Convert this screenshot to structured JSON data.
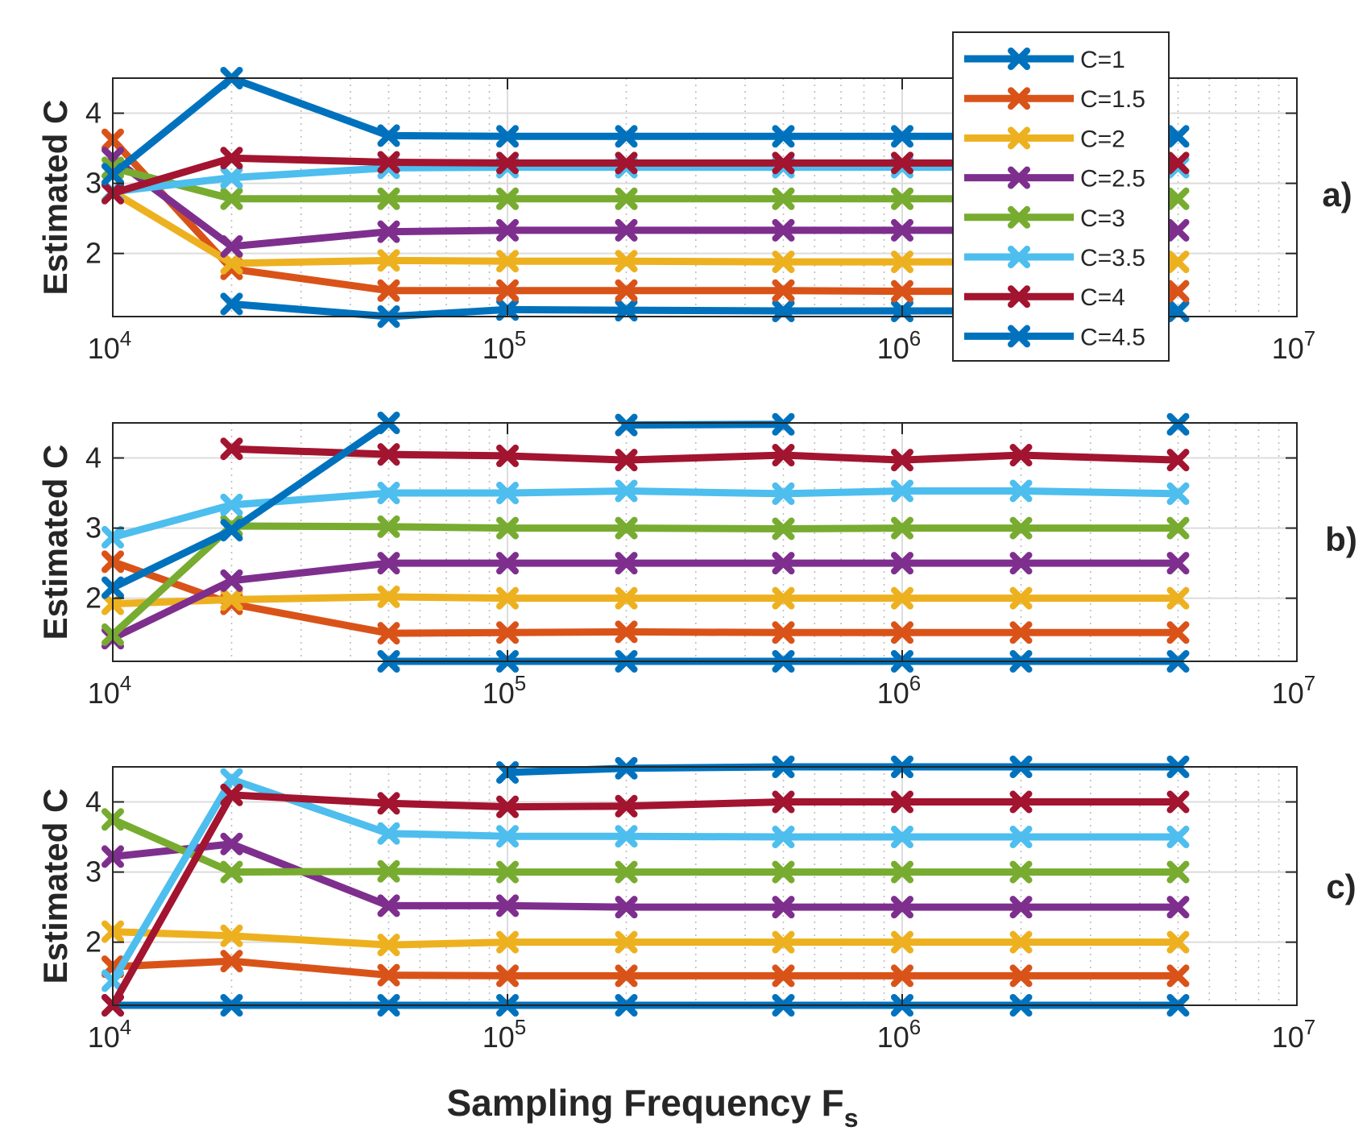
{
  "chart_data": {
    "type": "line",
    "xscale": "log",
    "xlabel": "Sampling Frequency F",
    "xlabel_subscript": "s",
    "ylabel": "Estimated C",
    "xlim": [
      10000,
      10000000
    ],
    "ylim": [
      1.1,
      4.5
    ],
    "x_tick_labels": [
      {
        "base": "10",
        "exp": "4",
        "value": 10000
      },
      {
        "base": "10",
        "exp": "5",
        "value": 100000
      },
      {
        "base": "10",
        "exp": "6",
        "value": 1000000
      },
      {
        "base": "10",
        "exp": "7",
        "value": 10000000
      }
    ],
    "y_ticks": [
      2,
      3,
      4
    ],
    "y_tick_labels": [
      "2",
      "3",
      "4"
    ],
    "grid": true,
    "legend_position": "top-right, overlapping panel a",
    "legend": [
      {
        "name": "C=1",
        "color": "#0072BD"
      },
      {
        "name": "C=1.5",
        "color": "#D95319"
      },
      {
        "name": "C=2",
        "color": "#EDB120"
      },
      {
        "name": "C=2.5",
        "color": "#7E2F8E"
      },
      {
        "name": "C=3",
        "color": "#77AC30"
      },
      {
        "name": "C=3.5",
        "color": "#4DBEEE"
      },
      {
        "name": "C=4",
        "color": "#A2142F"
      },
      {
        "name": "C=4.5",
        "color": "#0072BD"
      }
    ],
    "panels": [
      {
        "label": "a)",
        "series": [
          {
            "name": "C=1",
            "x": [
              20000,
              50000,
              100000,
              200000,
              500000,
              1000000,
              2000000,
              5000000
            ],
            "values": [
              1.28,
              1.1,
              1.2,
              1.19,
              1.18,
              1.18,
              1.18,
              1.18
            ]
          },
          {
            "name": "C=1.5",
            "x": [
              10000,
              20000,
              50000,
              100000,
              200000,
              500000,
              1000000,
              2000000,
              5000000
            ],
            "values": [
              3.62,
              1.78,
              1.47,
              1.47,
              1.47,
              1.47,
              1.46,
              1.46,
              1.46
            ]
          },
          {
            "name": "C=2",
            "x": [
              10000,
              20000,
              50000,
              100000,
              200000,
              500000,
              1000000,
              2000000,
              5000000
            ],
            "values": [
              2.88,
              1.86,
              1.9,
              1.89,
              1.89,
              1.88,
              1.88,
              1.88,
              1.88
            ]
          },
          {
            "name": "C=2.5",
            "x": [
              10000,
              20000,
              50000,
              100000,
              200000,
              500000,
              1000000,
              2000000,
              5000000
            ],
            "values": [
              3.36,
              2.1,
              2.31,
              2.33,
              2.33,
              2.33,
              2.33,
              2.33,
              2.33
            ]
          },
          {
            "name": "C=3",
            "x": [
              10000,
              20000,
              50000,
              100000,
              200000,
              500000,
              1000000,
              2000000,
              5000000
            ],
            "values": [
              3.22,
              2.78,
              2.78,
              2.78,
              2.78,
              2.78,
              2.78,
              2.78,
              2.78
            ]
          },
          {
            "name": "C=3.5",
            "x": [
              10000,
              20000,
              50000,
              100000,
              200000,
              500000,
              1000000,
              2000000,
              5000000
            ],
            "values": [
              2.88,
              3.08,
              3.22,
              3.23,
              3.23,
              3.23,
              3.23,
              3.23,
              3.23
            ]
          },
          {
            "name": "C=4",
            "x": [
              10000,
              20000,
              50000,
              100000,
              200000,
              500000,
              1000000,
              2000000,
              5000000
            ],
            "values": [
              2.86,
              3.36,
              3.3,
              3.29,
              3.29,
              3.29,
              3.29,
              3.29,
              3.29
            ]
          },
          {
            "name": "C=4.5",
            "x": [
              10000,
              20000,
              50000,
              100000,
              200000,
              500000,
              1000000,
              2000000,
              5000000
            ],
            "values": [
              3.13,
              4.5,
              3.68,
              3.67,
              3.67,
              3.67,
              3.67,
              3.67,
              3.67
            ]
          }
        ]
      },
      {
        "label": "b)",
        "series": [
          {
            "name": "C=1",
            "x": [
              50000,
              100000,
              200000,
              500000,
              1000000,
              2000000,
              5000000
            ],
            "values": [
              1.1,
              1.1,
              1.1,
              1.1,
              1.1,
              1.1,
              1.1
            ]
          },
          {
            "name": "C=1.5",
            "x": [
              10000,
              20000,
              50000,
              100000,
              200000,
              500000,
              1000000,
              2000000,
              5000000
            ],
            "values": [
              2.52,
              1.92,
              1.5,
              1.51,
              1.52,
              1.51,
              1.51,
              1.51,
              1.51
            ]
          },
          {
            "name": "C=2",
            "x": [
              10000,
              20000,
              50000,
              100000,
              200000,
              500000,
              1000000,
              2000000,
              5000000
            ],
            "values": [
              1.92,
              1.98,
              2.02,
              2.0,
              2.0,
              2.0,
              2.0,
              2.0,
              2.0
            ]
          },
          {
            "name": "C=2.5",
            "x": [
              10000,
              20000,
              50000,
              100000,
              200000,
              500000,
              1000000,
              2000000,
              5000000
            ],
            "values": [
              1.43,
              2.25,
              2.5,
              2.5,
              2.5,
              2.5,
              2.5,
              2.5,
              2.5
            ]
          },
          {
            "name": "C=3",
            "x": [
              10000,
              20000,
              50000,
              100000,
              200000,
              500000,
              1000000,
              2000000,
              5000000
            ],
            "values": [
              1.48,
              3.03,
              3.02,
              3.0,
              3.0,
              2.99,
              3.0,
              3.0,
              3.0
            ]
          },
          {
            "name": "C=3.5",
            "x": [
              10000,
              20000,
              50000,
              100000,
              200000,
              500000,
              1000000,
              2000000,
              5000000
            ],
            "values": [
              2.87,
              3.33,
              3.5,
              3.5,
              3.53,
              3.49,
              3.53,
              3.53,
              3.49
            ]
          },
          {
            "name": "C=4",
            "x": [
              20000,
              50000,
              100000,
              200000,
              500000,
              1000000,
              2000000,
              5000000
            ],
            "values": [
              4.13,
              4.05,
              4.03,
              3.97,
              4.04,
              3.97,
              4.04,
              3.97
            ]
          },
          {
            "name": "C=4.5",
            "x": [
              10000,
              20000,
              50000
            ],
            "values": [
              2.15,
              2.97,
              4.5
            ]
          },
          {
            "name": "C=4.5",
            "x": [
              200000,
              500000
            ],
            "values": [
              4.47,
              4.48
            ]
          },
          {
            "name": "C=4.5",
            "x": [
              5000000
            ],
            "values": [
              4.48
            ]
          }
        ]
      },
      {
        "label": "c)",
        "series": [
          {
            "name": "C=1",
            "x": [
              10000,
              20000,
              50000,
              100000,
              200000,
              500000,
              1000000,
              2000000,
              5000000
            ],
            "values": [
              1.1,
              1.1,
              1.1,
              1.1,
              1.1,
              1.1,
              1.1,
              1.1,
              1.1
            ]
          },
          {
            "name": "C=1.5",
            "x": [
              10000,
              20000,
              50000,
              100000,
              200000,
              500000,
              1000000,
              2000000,
              5000000
            ],
            "values": [
              1.65,
              1.73,
              1.53,
              1.52,
              1.52,
              1.52,
              1.52,
              1.52,
              1.52
            ]
          },
          {
            "name": "C=2",
            "x": [
              10000,
              20000,
              50000,
              100000,
              200000,
              500000,
              1000000,
              2000000,
              5000000
            ],
            "values": [
              2.15,
              2.09,
              1.96,
              2.0,
              2.0,
              2.0,
              2.0,
              2.0,
              2.0
            ]
          },
          {
            "name": "C=2.5",
            "x": [
              10000,
              20000,
              50000,
              100000,
              200000,
              500000,
              1000000,
              2000000,
              5000000
            ],
            "values": [
              3.22,
              3.4,
              2.52,
              2.52,
              2.5,
              2.5,
              2.5,
              2.5,
              2.5
            ]
          },
          {
            "name": "C=3",
            "x": [
              10000,
              20000,
              50000,
              100000,
              200000,
              500000,
              1000000,
              2000000,
              5000000
            ],
            "values": [
              3.75,
              3.0,
              3.01,
              3.0,
              3.0,
              3.0,
              3.0,
              3.0,
              3.0
            ]
          },
          {
            "name": "C=3.5",
            "x": [
              10000,
              20000,
              50000,
              100000,
              200000,
              500000,
              1000000,
              2000000,
              5000000
            ],
            "values": [
              1.45,
              4.32,
              3.55,
              3.51,
              3.51,
              3.5,
              3.5,
              3.5,
              3.5
            ]
          },
          {
            "name": "C=4",
            "x": [
              10000,
              20000,
              50000,
              100000,
              200000,
              500000,
              1000000,
              2000000,
              5000000
            ],
            "values": [
              1.1,
              4.1,
              3.98,
              3.93,
              3.94,
              4.0,
              4.0,
              4.0,
              4.0
            ]
          },
          {
            "name": "C=4.5",
            "x": [
              100000,
              200000,
              500000,
              1000000,
              2000000,
              5000000
            ],
            "values": [
              4.42,
              4.48,
              4.5,
              4.5,
              4.5,
              4.5
            ]
          }
        ]
      }
    ]
  }
}
